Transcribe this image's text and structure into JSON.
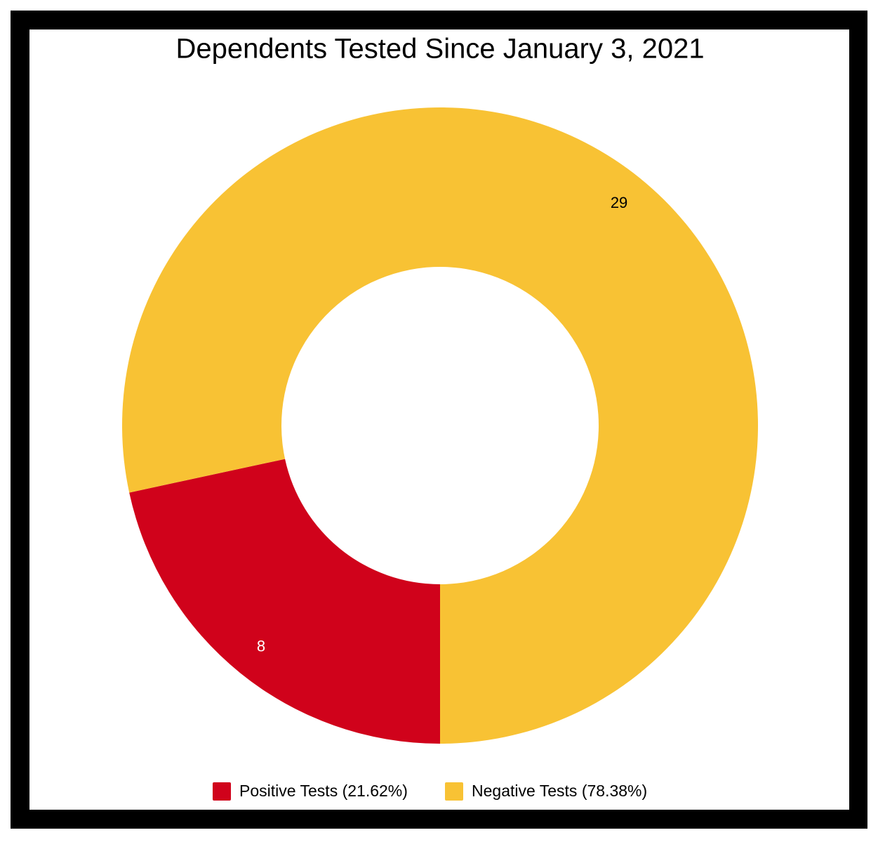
{
  "chart_data": {
    "type": "donut",
    "title": "Dependents Tested Since January 3, 2021",
    "categories": [
      "Positive Tests (21.62%)",
      "Negative Tests (78.38%)"
    ],
    "values": [
      8,
      29
    ],
    "colors": [
      "#d0021b",
      "#f8c234"
    ],
    "label_colors": [
      "#ffffff",
      "#000000"
    ],
    "legend": "bottom"
  }
}
